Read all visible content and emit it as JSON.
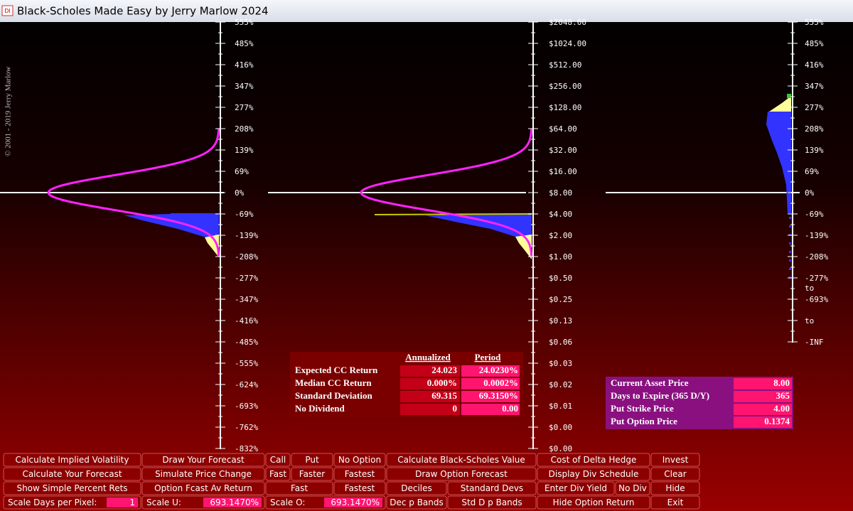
{
  "window": {
    "icon": "DI",
    "title": "Black-Scholes Made Easy by Jerry Marlow  2024"
  },
  "copyright": "© 2001 - 2019   Jerry Marlow",
  "axes": [
    {
      "labels": [
        "555%",
        "485%",
        "416%",
        "347%",
        "277%",
        "208%",
        "139%",
        "69%",
        "0%",
        "-69%",
        "-139%",
        "-208%",
        "-277%",
        "-347%",
        "-416%",
        "-485%",
        "-555%",
        "-624%",
        "-693%",
        "-762%",
        "-832%"
      ]
    },
    {
      "labels": [
        "$2048.00",
        "$1024.00",
        "$512.00",
        "$256.00",
        "$128.00",
        "$64.00",
        "$32.00",
        "$16.00",
        "$8.00",
        "$4.00",
        "$2.00",
        "$1.00",
        "$0.50",
        "$0.25",
        "$0.13",
        "$0.06",
        "$0.03",
        "$0.02",
        "$0.01",
        "$0.00",
        "$0.00"
      ]
    },
    {
      "labels": [
        "555%",
        "485%",
        "416%",
        "347%",
        "277%",
        "208%",
        "139%",
        "69%",
        "0%",
        "-69%",
        "-139%",
        "-208%",
        "-277%",
        "to",
        "-693%",
        "to",
        "-INF"
      ]
    }
  ],
  "stats": {
    "headers": [
      "Annualized",
      "Period"
    ],
    "rows": [
      {
        "label": "Expected CC Return",
        "annualized": "24.023",
        "period": "24.0230%"
      },
      {
        "label": "Median CC Return",
        "annualized": "0.000%",
        "period": "0.0002%"
      },
      {
        "label": "Standard Deviation",
        "annualized": "69.315",
        "period": "69.3150%"
      },
      {
        "label": "No Dividend",
        "annualized": "0",
        "period": "0.00"
      }
    ]
  },
  "asset": {
    "rows": [
      {
        "label": "Current Asset Price",
        "value": "8.00"
      },
      {
        "label": "Days to Expire  (365 D/Y)",
        "value": "365"
      },
      {
        "label": "Put Strike Price",
        "value": "4.00"
      },
      {
        "label": "Put Option Price",
        "value": "0.1374"
      }
    ]
  },
  "buttons": [
    [
      {
        "label": "Calculate Implied Volatility"
      },
      {
        "label": "Draw Your Forecast"
      },
      {
        "label": "Call"
      },
      {
        "label": "Put"
      },
      {
        "label": "No Option"
      },
      {
        "label": "Calculate Black-Scholes Value"
      },
      {
        "label": "Cost of Delta Hedge"
      },
      {
        "label": "Invest"
      }
    ],
    [
      {
        "label": "Calculate Your Forecast"
      },
      {
        "label": "Simulate Price Change"
      },
      {
        "label": "Fast"
      },
      {
        "label": "Faster"
      },
      {
        "label": "Fastest"
      },
      {
        "label": "Draw Option Forecast"
      },
      {
        "label": "Display Div Schedule"
      },
      {
        "label": "Clear"
      }
    ],
    [
      {
        "label": "Show Simple Percent Rets"
      },
      {
        "label": "Option Fcast Av Return"
      },
      {
        "label": "Fast"
      },
      {
        "label": "Fastest"
      },
      {
        "label": "Deciles"
      },
      {
        "label": "Standard Devs"
      },
      {
        "label": "Enter Div Yield"
      },
      {
        "label": "No Div"
      },
      {
        "label": "Hide"
      }
    ],
    [
      {
        "label": "Scale Days per Pixel:",
        "value": "1"
      },
      {
        "label": "Scale U:",
        "value": "693.1470%"
      },
      {
        "label": "Scale O:",
        "value": "693.1470%"
      },
      {
        "label": "Dec p Bands"
      },
      {
        "label": "Std D p Bands"
      },
      {
        "label": "Hide Option Return"
      },
      {
        "label": "Exit"
      }
    ]
  ]
}
